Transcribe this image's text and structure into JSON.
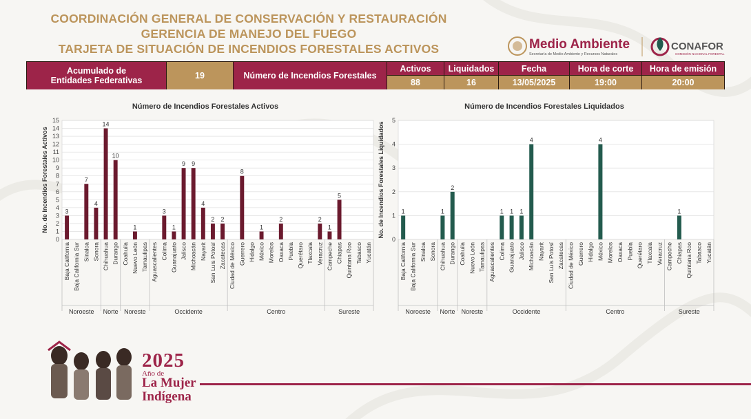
{
  "header": {
    "line1": "COORDINACIÓN GENERAL DE CONSERVACIÓN Y RESTAURACIÓN",
    "line2": "GERENCIA DE MANEJO DEL FUEGO",
    "line3": "TARJETA DE SITUACIÓN DE INCENDIOS FORESTALES ACTIVOS"
  },
  "logos": {
    "medio_ambiente": "Medio Ambiente",
    "medio_ambiente_sub": "Secretaría de Medio Ambiente y Recursos Naturales",
    "conafor": "CONAFOR",
    "conafor_sub": "COMISIÓN NACIONAL FORESTAL"
  },
  "summary": {
    "acumulado_label_1": "Acumulado de",
    "acumulado_label_2": "Entidades Federativas",
    "acumulado_value": "19",
    "incendios_label": "Número de Incendios Forestales",
    "activos_label": "Activos",
    "activos_value": "88",
    "liquidados_label": "Liquidados",
    "liquidados_value": "16",
    "fecha_label": "Fecha",
    "fecha_value": "13/05/2025",
    "corte_label": "Hora de corte",
    "corte_value": "19:00",
    "emision_label": "Hora de emisión",
    "emision_value": "20:00"
  },
  "footer": {
    "year": "2025",
    "sub": "Año de",
    "line1": "La Mujer",
    "line2": "Indígena"
  },
  "colors": {
    "activos_bar": "#6b1a2e",
    "liquidados_bar": "#235b4e",
    "gold": "#bc955c",
    "guinda": "#9d2449"
  },
  "chart_data": [
    {
      "type": "bar",
      "title": "Número de Incendios Forestales Activos",
      "ylabel": "No. de Incendios Forestales Activos",
      "xlabel": "",
      "ylim": [
        0,
        15
      ],
      "yticks": [
        0,
        1,
        2,
        3,
        4,
        5,
        6,
        7,
        8,
        9,
        10,
        11,
        12,
        13,
        14,
        15
      ],
      "grid": true,
      "categories": [
        "Baja California",
        "Baja California Sur",
        "Sinaloa",
        "Sonora",
        "Chihuahua",
        "Durango",
        "Coahuila",
        "Nuevo León",
        "Tamaulipas",
        "Aguascalientes",
        "Colima",
        "Guanajuato",
        "Jalisco",
        "Michoacán",
        "Nayarit",
        "San Luis Potosí",
        "Zacatecas",
        "Ciudad de México",
        "Guerrero",
        "Hidalgo",
        "México",
        "Morelos",
        "Oaxaca",
        "Puebla",
        "Querétaro",
        "Tlaxcala",
        "Veracruz",
        "Campeche",
        "Chiapas",
        "Quintana Roo",
        "Tabasco",
        "Yucatán"
      ],
      "values": [
        3,
        0,
        7,
        4,
        14,
        10,
        0,
        1,
        0,
        0,
        3,
        1,
        9,
        9,
        4,
        2,
        2,
        0,
        8,
        0,
        1,
        0,
        2,
        0,
        0,
        0,
        2,
        1,
        5,
        0,
        0,
        0
      ],
      "groups": [
        {
          "name": "Noroeste",
          "count": 4
        },
        {
          "name": "Norte",
          "count": 2
        },
        {
          "name": "Noreste",
          "count": 3
        },
        {
          "name": "Occidente",
          "count": 8
        },
        {
          "name": "Centro",
          "count": 10
        },
        {
          "name": "Sureste",
          "count": 5
        }
      ]
    },
    {
      "type": "bar",
      "title": "Número de Incendios Forestales Liquidados",
      "ylabel": "No. de Incendios Forestales Liquidados",
      "xlabel": "",
      "ylim": [
        0,
        5
      ],
      "yticks": [
        0,
        1,
        2,
        3,
        4,
        5
      ],
      "grid": true,
      "categories": [
        "Baja California",
        "Baja California Sur",
        "Sinaloa",
        "Sonora",
        "Chihuahua",
        "Durango",
        "Coahuila",
        "Nuevo León",
        "Tamaulipas",
        "Aguascalientes",
        "Colima",
        "Guanajuato",
        "Jalisco",
        "Michoacán",
        "Nayarit",
        "San Luis Potosí",
        "Zacatecas",
        "Ciudad de México",
        "Guerrero",
        "Hidalgo",
        "México",
        "Morelos",
        "Oaxaca",
        "Puebla",
        "Querétaro",
        "Tlaxcala",
        "Veracruz",
        "Campeche",
        "Chiapas",
        "Quintana Roo",
        "Tabasco",
        "Yucatán"
      ],
      "values": [
        1,
        0,
        0,
        0,
        1,
        2,
        0,
        0,
        0,
        0,
        1,
        1,
        1,
        4,
        0,
        0,
        0,
        0,
        0,
        0,
        4,
        0,
        0,
        0,
        0,
        0,
        0,
        0,
        1,
        0,
        0,
        0
      ],
      "groups": [
        {
          "name": "Noroeste",
          "count": 4
        },
        {
          "name": "Norte",
          "count": 2
        },
        {
          "name": "Noreste",
          "count": 3
        },
        {
          "name": "Occidente",
          "count": 8
        },
        {
          "name": "Centro",
          "count": 10
        },
        {
          "name": "Sureste",
          "count": 5
        }
      ]
    }
  ]
}
